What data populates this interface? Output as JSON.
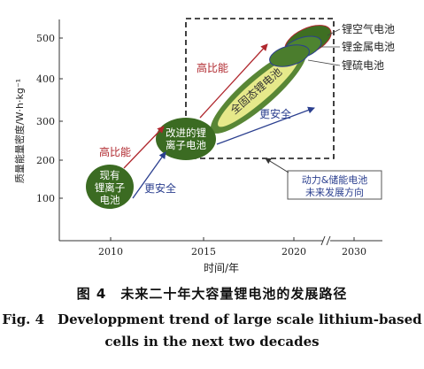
{
  "chart_data": {
    "type": "diagram",
    "xlabel": "时间/年",
    "ylabel": "质量能量密度/W·h·kg⁻¹",
    "x_ticks": [
      "2010",
      "2015",
      "2020",
      "2030"
    ],
    "y_ticks": [
      "100",
      "200",
      "300",
      "400",
      "500"
    ],
    "technologies": [
      {
        "name": "现有锂离子电池",
        "lines": [
          "现有",
          "锂离子",
          "电池"
        ]
      },
      {
        "name": "改进的锂离子电池",
        "lines": [
          "改进的锂",
          "离子电池"
        ]
      },
      {
        "name": "全固态锂电池",
        "lines": [
          "全固态锂电池"
        ]
      },
      {
        "name": "锂空气电池"
      },
      {
        "name": "锂金属电池"
      },
      {
        "name": "锂硫电池"
      }
    ],
    "arrows": [
      {
        "label": "高比能",
        "color": "#b0282e"
      },
      {
        "label": "更安全",
        "color": "#2b3f8f"
      }
    ],
    "legend_box": {
      "lines": [
        "动力&储能电池",
        "未来发展方向"
      ]
    }
  },
  "caption": {
    "zh": "图 4　未来二十年大容量锂电池的发展路径",
    "en_line1": "Fig. 4　Developpment trend of large scale lithium-based",
    "en_line2": "cells in the next two decades"
  }
}
